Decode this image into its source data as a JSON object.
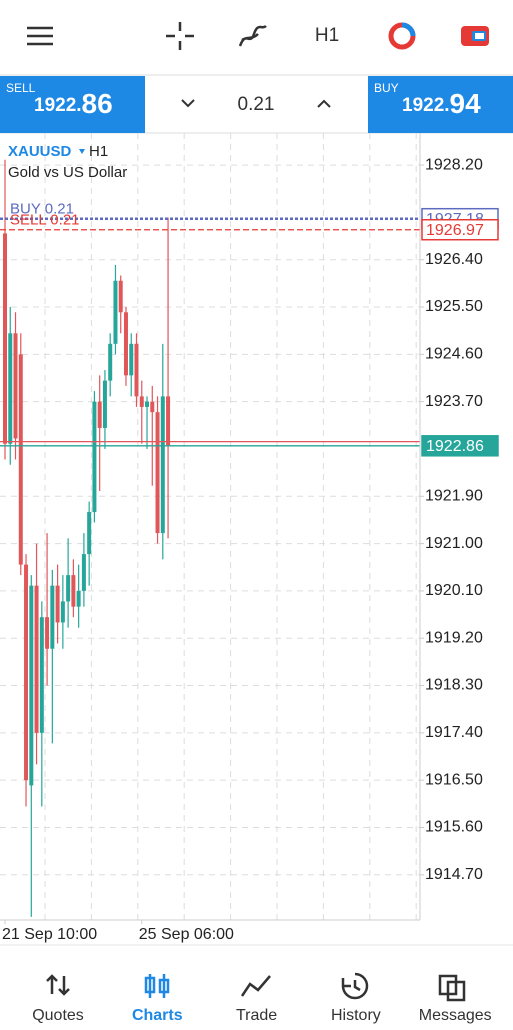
{
  "trade_panel": {
    "sell_label": "SELL",
    "sell_price": "1922.86",
    "volume": "0.21",
    "buy_label": "BUY",
    "buy_price": "1922.94"
  },
  "chart_data": {
    "type": "candlestick",
    "symbol": "XAUUSD",
    "timeframe": "H1",
    "description": "Gold vs US Dollar",
    "x": [
      "21 Sep 10:00",
      null,
      null,
      null,
      null,
      null,
      null,
      null,
      null,
      null,
      null,
      null,
      null,
      null,
      null,
      null,
      null,
      null,
      null,
      null,
      null,
      null,
      null,
      null,
      null,
      null,
      "25 Sep 06:00",
      null,
      null,
      null,
      null,
      null
    ],
    "open": [
      1926.9,
      1922.9,
      1925.0,
      1924.6,
      1920.6,
      1916.4,
      1920.2,
      1917.4,
      1919.6,
      1919.0,
      1920.2,
      1919.5,
      1919.9,
      1920.4,
      1919.8,
      1920.1,
      1920.8,
      1921.6,
      1923.7,
      1923.2,
      1924.1,
      1924.8,
      1926.0,
      1925.4,
      1924.2,
      1924.8,
      1923.8,
      1923.6,
      1923.7,
      1923.5,
      1921.2,
      1923.8
    ],
    "high": [
      1928.3,
      1925.5,
      1925.4,
      1925.0,
      1920.8,
      1920.4,
      1921.0,
      1919.9,
      1921.2,
      1920.5,
      1920.6,
      1920.4,
      1921.1,
      1920.7,
      1920.6,
      1921.2,
      1921.8,
      1923.9,
      1924.2,
      1924.3,
      1925.0,
      1926.3,
      1926.1,
      1925.5,
      1925.0,
      1925.0,
      1924.1,
      1923.8,
      1924.0,
      1923.8,
      1924.8,
      1927.2
    ],
    "low": [
      1922.6,
      1922.5,
      1922.6,
      1920.4,
      1916.0,
      1913.9,
      1916.8,
      1916.0,
      1918.3,
      1917.2,
      1919.1,
      1919.0,
      1919.4,
      1919.6,
      1919.4,
      1919.8,
      1920.2,
      1921.4,
      1922.0,
      1922.8,
      1923.8,
      1924.6,
      1925.0,
      1924.0,
      1923.8,
      1923.6,
      1922.9,
      1922.8,
      1922.1,
      1921.0,
      1920.7,
      1921.1
    ],
    "close": [
      1922.9,
      1925.0,
      1923.0,
      1920.6,
      1916.5,
      1920.2,
      1917.4,
      1919.6,
      1919.0,
      1920.2,
      1919.5,
      1919.9,
      1920.4,
      1919.8,
      1920.1,
      1920.8,
      1921.6,
      1923.7,
      1923.2,
      1924.1,
      1924.8,
      1926.0,
      1925.4,
      1924.2,
      1924.8,
      1923.8,
      1923.6,
      1923.7,
      1923.5,
      1921.2,
      1923.8,
      1922.86
    ],
    "up_color": "#26a69a",
    "down_color": "#e0575a",
    "ylim": [
      1913.84,
      1928.81
    ],
    "yticks": [
      {
        "value": 1928.2,
        "label": "1928.20"
      },
      {
        "value": 1926.4,
        "label": "1926.40"
      },
      {
        "value": 1925.5,
        "label": "1925.50"
      },
      {
        "value": 1924.6,
        "label": "1924.60"
      },
      {
        "value": 1923.7,
        "label": "1923.70"
      },
      {
        "value": 1921.9,
        "label": "1921.90"
      },
      {
        "value": 1921,
        "label": "1921.00"
      },
      {
        "value": 1920.1,
        "label": "1920.10"
      },
      {
        "value": 1919.2,
        "label": "1919.20"
      },
      {
        "value": 1918.3,
        "label": "1918.30"
      },
      {
        "value": 1917.4,
        "label": "1917.40"
      },
      {
        "value": 1916.5,
        "label": "1916.50"
      },
      {
        "value": 1915.6,
        "label": "1915.60"
      },
      {
        "value": 1914.7,
        "label": "1914.70"
      }
    ],
    "grid": true,
    "lines": [
      {
        "label": "BUY 0.21",
        "value": 1927.18,
        "color": "#5c6bc0",
        "style": "dotted"
      },
      {
        "label": "SELL 0.21",
        "value": 1926.97,
        "color": "#e53935",
        "style": "dashed"
      },
      {
        "value": 1922.94,
        "color": "#e0575a",
        "style": "solid"
      },
      {
        "value": 1922.86,
        "color": "#26a69a",
        "style": "solid",
        "filled": true
      }
    ]
  },
  "nav": [
    "Quotes",
    "Charts",
    "Trade",
    "History",
    "Messages"
  ],
  "active_nav": 1
}
